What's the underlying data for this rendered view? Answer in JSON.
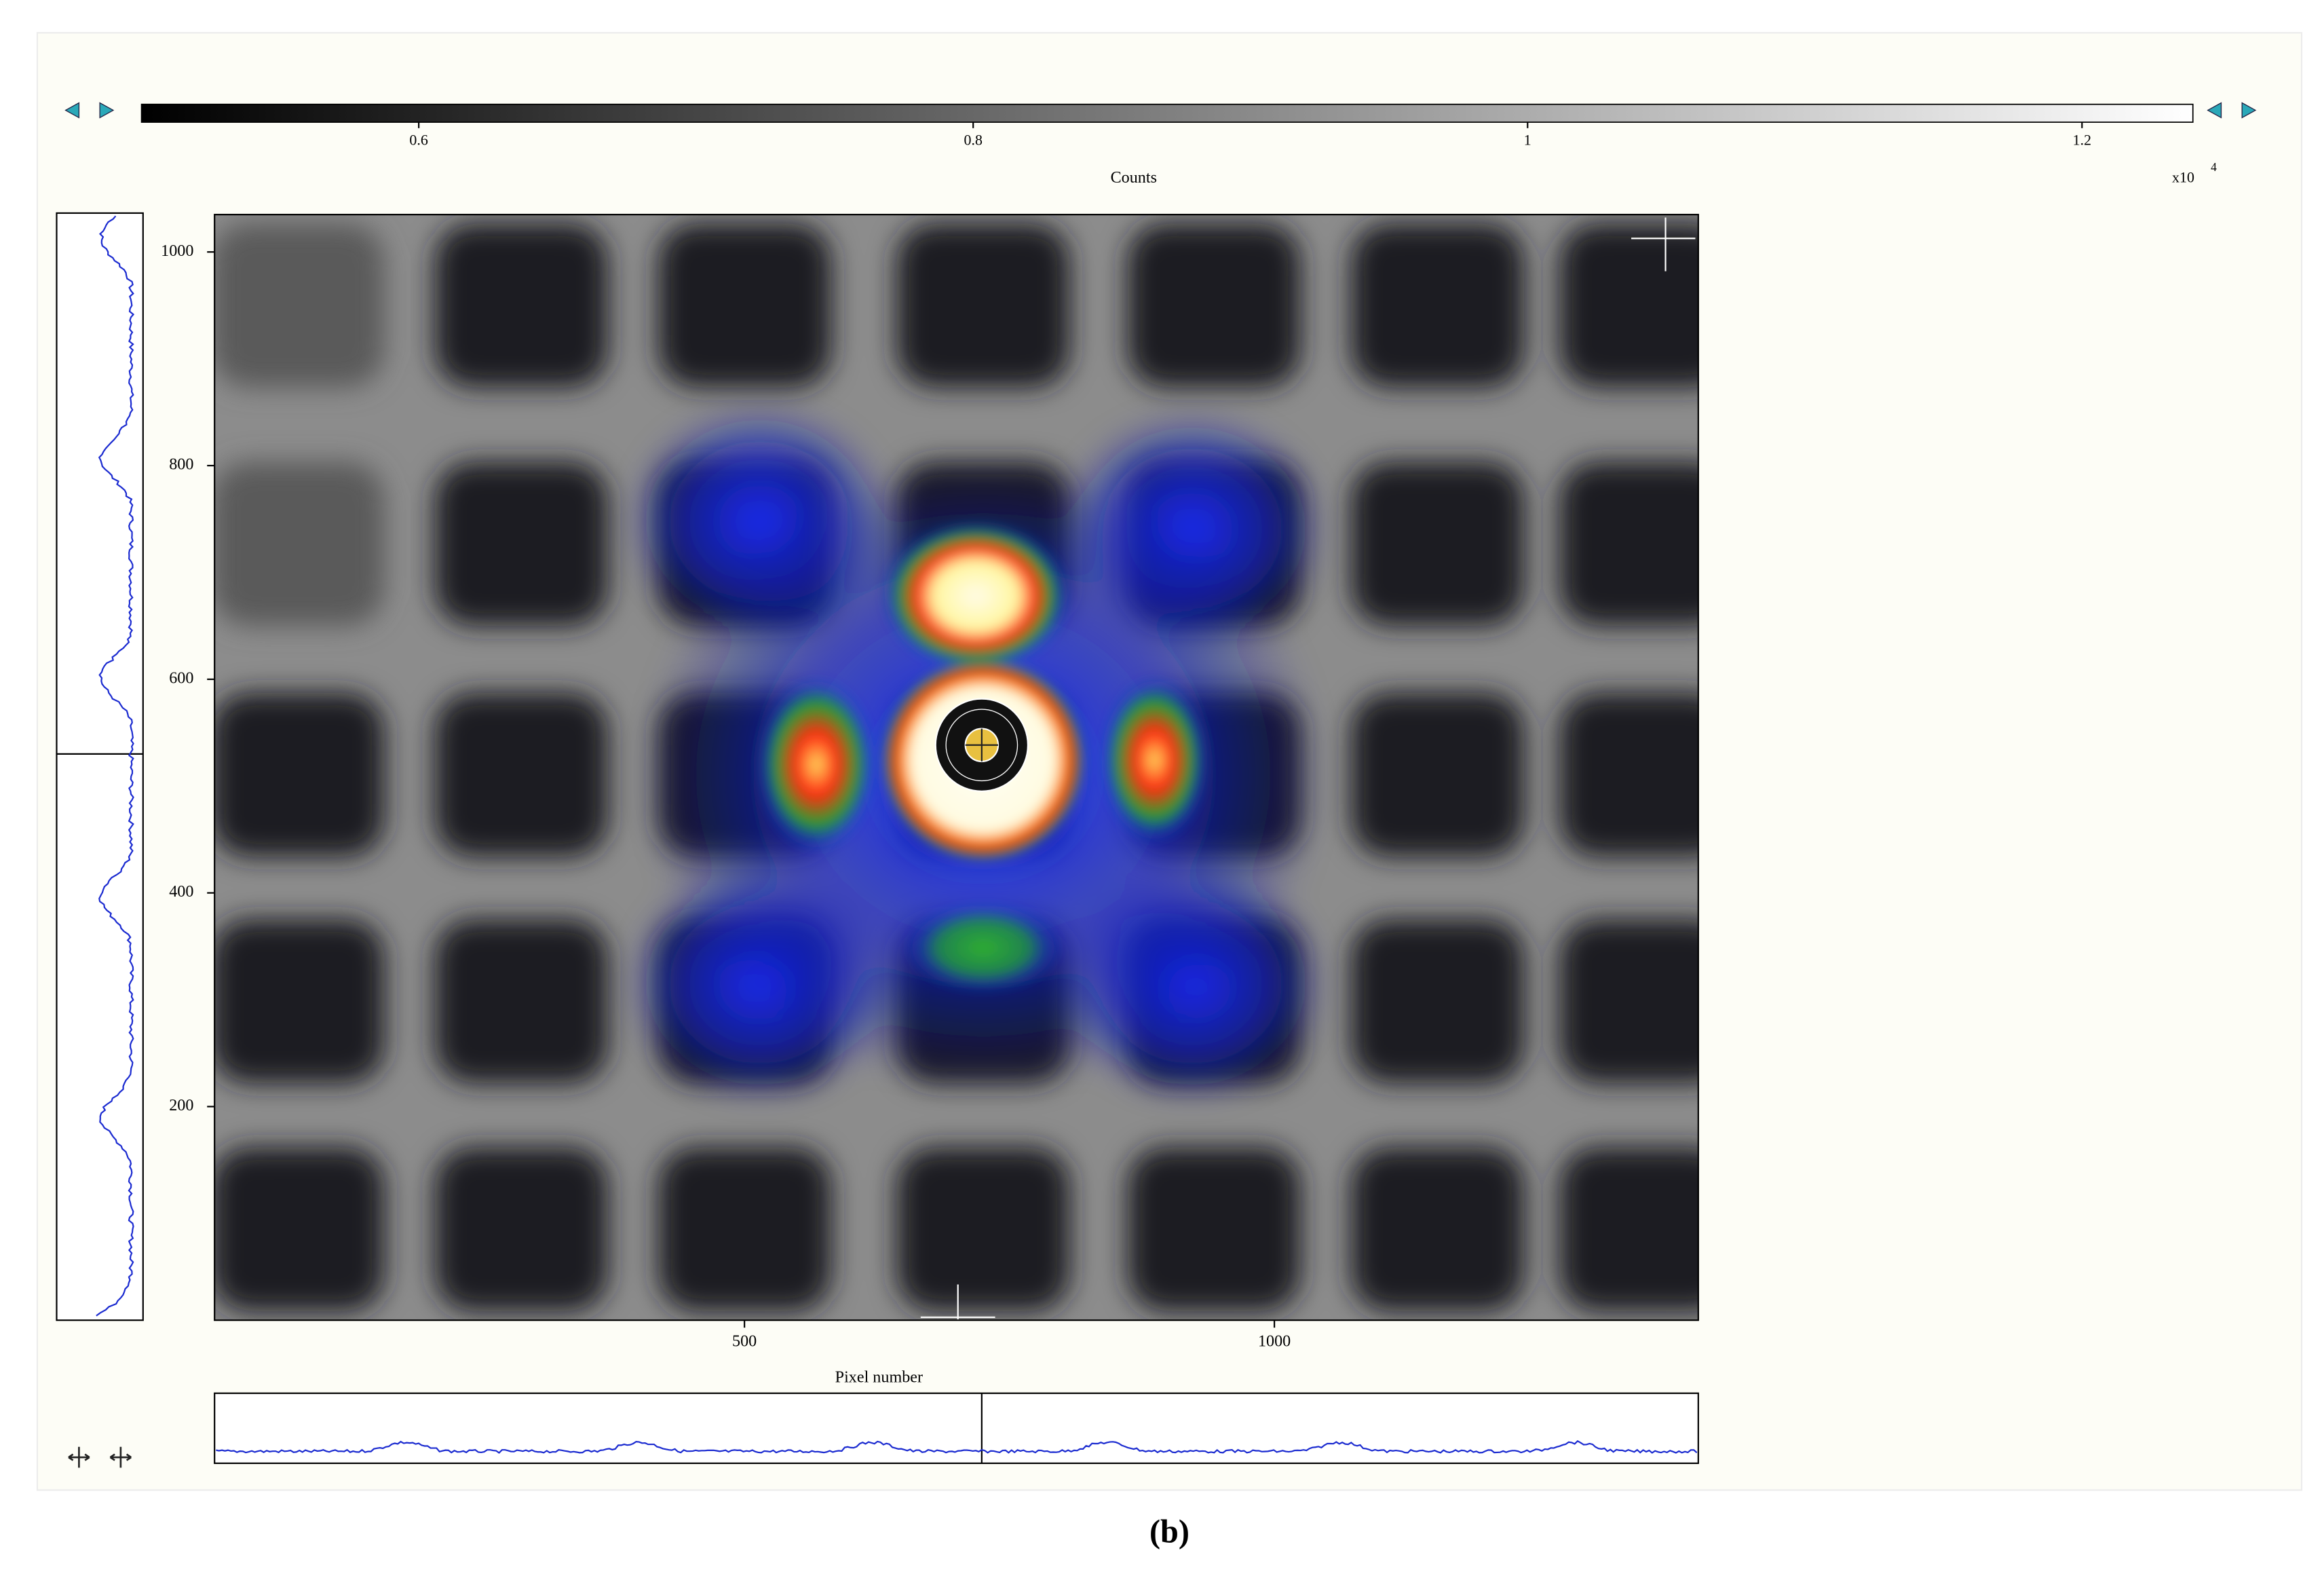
{
  "colorbar": {
    "label": "Counts",
    "lim": [
      0.5,
      1.24
    ],
    "ticks": [
      0.6,
      0.8,
      1,
      1.2
    ],
    "multiplier": "x10",
    "exponent": "4"
  },
  "image": {
    "xlabel": "Pixel number",
    "xlim": [
      0,
      1400
    ],
    "ylim": [
      0,
      1035
    ],
    "xticks": [
      500,
      1000
    ],
    "yticks": [
      200,
      400,
      600,
      800,
      1000
    ]
  },
  "caption": "(b)"
}
